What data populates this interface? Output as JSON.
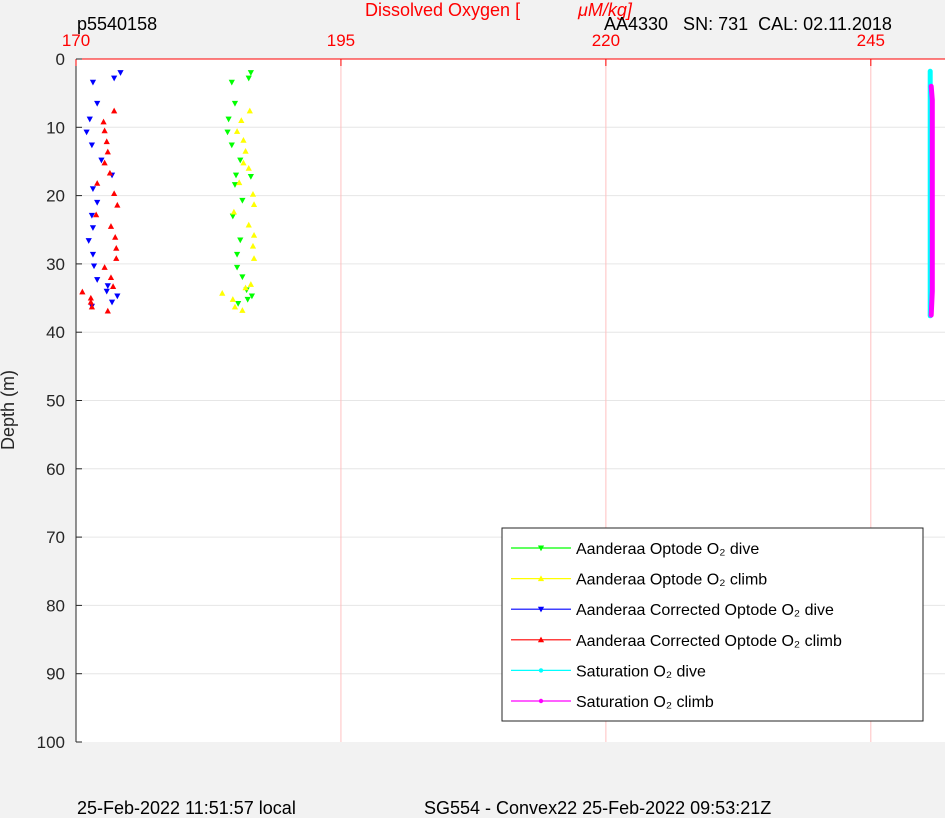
{
  "header": {
    "profile_id": "p5540158",
    "xlabel_main": "Dissolved Oxygen [",
    "xlabel_unit": "μM/kg]",
    "sensor_info": "AA4330   SN: 731  CAL: 02.11.2018"
  },
  "footer": {
    "local_time": "25-Feb-2022 11:51:57 local",
    "mission": "SG554 - Convex22 25-Feb-2022 09:53:21Z"
  },
  "colors": {
    "axis_red": "#ff0000",
    "grid_red": "#ffc0c0",
    "grid_gray": "#e6e6e6",
    "plot_bg": "#ffffff",
    "figure_bg": "#f2f2f2"
  },
  "chart_data": {
    "type": "scatter",
    "ylabel": "Depth (m)",
    "xlim": [
      170,
      252
    ],
    "ylim": [
      0,
      100
    ],
    "y_reversed": true,
    "x_ticks": [
      170,
      195,
      220,
      245
    ],
    "y_ticks": [
      0,
      10,
      20,
      30,
      40,
      50,
      60,
      70,
      80,
      90,
      100
    ],
    "grid": true,
    "legend_position": "bottom-right",
    "series": [
      {
        "name": "Aanderaa Optode O₂ dive",
        "color": "#00ff00",
        "marker": "triangle-down",
        "points": [
          [
            186.5,
            2
          ],
          [
            186.3,
            2.8
          ],
          [
            184.7,
            3.4
          ],
          [
            185.0,
            6.5
          ],
          [
            184.4,
            8.8
          ],
          [
            184.3,
            10.7
          ],
          [
            184.7,
            12.6
          ],
          [
            185.5,
            14.8
          ],
          [
            185.1,
            17.0
          ],
          [
            186.5,
            17.2
          ],
          [
            185.0,
            18.4
          ],
          [
            185.7,
            20.7
          ],
          [
            184.8,
            23.0
          ],
          [
            185.5,
            26.5
          ],
          [
            185.2,
            28.6
          ],
          [
            185.2,
            30.5
          ],
          [
            185.7,
            31.9
          ],
          [
            186.1,
            33.8
          ],
          [
            186.2,
            35.2
          ],
          [
            186.6,
            34.7
          ],
          [
            185.3,
            35.8
          ]
        ]
      },
      {
        "name": "Aanderaa Optode O₂ climb",
        "color": "#ffff00",
        "marker": "triangle-up",
        "points": [
          [
            185.7,
            36.8
          ],
          [
            185.0,
            36.3
          ],
          [
            184.8,
            35.2
          ],
          [
            183.8,
            34.3
          ],
          [
            186.0,
            33.5
          ],
          [
            186.5,
            33.0
          ],
          [
            186.8,
            29.2
          ],
          [
            186.7,
            27.4
          ],
          [
            186.8,
            25.8
          ],
          [
            186.3,
            24.3
          ],
          [
            184.9,
            22.4
          ],
          [
            186.8,
            21.3
          ],
          [
            186.7,
            19.8
          ],
          [
            185.4,
            18.1
          ],
          [
            186.3,
            16.0
          ],
          [
            185.8,
            15.2
          ],
          [
            186.0,
            13.5
          ],
          [
            185.8,
            11.9
          ],
          [
            185.2,
            10.6
          ],
          [
            185.6,
            9.0
          ],
          [
            186.4,
            7.6
          ]
        ]
      },
      {
        "name": "Aanderaa Corrected Optode O₂ dive",
        "color": "#0000ff",
        "marker": "triangle-down",
        "points": [
          [
            174.2,
            2
          ],
          [
            173.6,
            2.8
          ],
          [
            171.6,
            3.4
          ],
          [
            172.0,
            6.5
          ],
          [
            171.3,
            8.8
          ],
          [
            171.0,
            10.7
          ],
          [
            171.5,
            12.6
          ],
          [
            172.4,
            14.8
          ],
          [
            173.4,
            17.0
          ],
          [
            171.6,
            19.0
          ],
          [
            172.0,
            21.0
          ],
          [
            171.5,
            22.9
          ],
          [
            171.6,
            24.7
          ],
          [
            171.2,
            26.6
          ],
          [
            171.6,
            28.6
          ],
          [
            171.7,
            30.3
          ],
          [
            172.0,
            32.3
          ],
          [
            173.0,
            33.2
          ],
          [
            172.9,
            34.0
          ],
          [
            173.9,
            34.7
          ],
          [
            173.4,
            35.6
          ],
          [
            171.5,
            36.2
          ]
        ]
      },
      {
        "name": "Aanderaa Corrected Optode O₂ climb",
        "color": "#ff0000",
        "marker": "triangle-up",
        "points": [
          [
            173.0,
            36.9
          ],
          [
            171.5,
            36.3
          ],
          [
            171.4,
            35.6
          ],
          [
            171.4,
            35.0
          ],
          [
            170.6,
            34.1
          ],
          [
            173.5,
            33.3
          ],
          [
            173.3,
            32.0
          ],
          [
            172.7,
            30.5
          ],
          [
            173.8,
            29.2
          ],
          [
            173.8,
            27.7
          ],
          [
            173.7,
            26.1
          ],
          [
            173.3,
            24.5
          ],
          [
            171.9,
            22.8
          ],
          [
            173.9,
            21.4
          ],
          [
            173.6,
            19.7
          ],
          [
            172.0,
            18.2
          ],
          [
            173.2,
            16.7
          ],
          [
            172.7,
            15.2
          ],
          [
            173.0,
            13.6
          ],
          [
            172.9,
            12.1
          ],
          [
            172.7,
            10.5
          ],
          [
            172.6,
            9.2
          ],
          [
            173.6,
            7.6
          ]
        ]
      },
      {
        "name": "Saturation O₂ dive",
        "color": "#00ffff",
        "marker": "dot",
        "points": [
          [
            250.6,
            1.8
          ],
          [
            250.6,
            3
          ],
          [
            250.6,
            4
          ],
          [
            250.6,
            5.5
          ],
          [
            250.6,
            37.6
          ]
        ]
      },
      {
        "name": "Saturation O₂ climb",
        "color": "#ff00ff",
        "marker": "dot",
        "points": [
          [
            250.7,
            37.5
          ],
          [
            250.8,
            34
          ],
          [
            250.8,
            30
          ],
          [
            250.8,
            26
          ],
          [
            250.8,
            22
          ],
          [
            250.8,
            18
          ],
          [
            250.8,
            14
          ],
          [
            250.8,
            10
          ],
          [
            250.8,
            6
          ],
          [
            250.7,
            4
          ]
        ]
      }
    ]
  }
}
